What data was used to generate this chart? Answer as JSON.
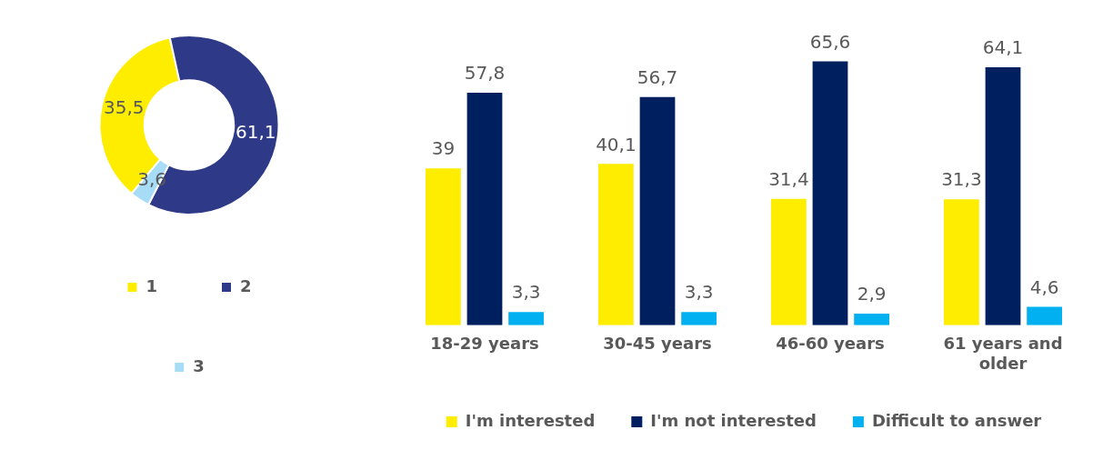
{
  "chart_data": [
    {
      "type": "donut",
      "categories": [
        "1",
        "2",
        "3"
      ],
      "values": [
        35.5,
        61.1,
        3.6
      ],
      "colors": [
        "#ffed00",
        "#2e3a87",
        "#a6dcf5"
      ],
      "value_labels": [
        "35,5",
        "61,1",
        "3,6"
      ],
      "legend": "bottom"
    },
    {
      "type": "bar",
      "categories": [
        "18-29 years",
        "30-45 years",
        "46-60 years",
        "61 years and older"
      ],
      "legend": "bottom",
      "series": [
        {
          "name": "I'm interested",
          "color": "#ffed00",
          "values": [
            39,
            40.1,
            31.4,
            31.3
          ],
          "value_labels": [
            "39",
            "40,1",
            "31,4",
            "31,3"
          ]
        },
        {
          "name": "I'm not interested",
          "color": "#001f5f",
          "values": [
            57.8,
            56.7,
            65.6,
            64.1
          ],
          "value_labels": [
            "57,8",
            "56,7",
            "65,6",
            "64,1"
          ]
        },
        {
          "name": "Difficult to answer",
          "color": "#00b0f0",
          "values": [
            3.3,
            3.3,
            2.9,
            4.6
          ],
          "value_labels": [
            "3,3",
            "3,3",
            "2,9",
            "4,6"
          ]
        }
      ]
    }
  ]
}
